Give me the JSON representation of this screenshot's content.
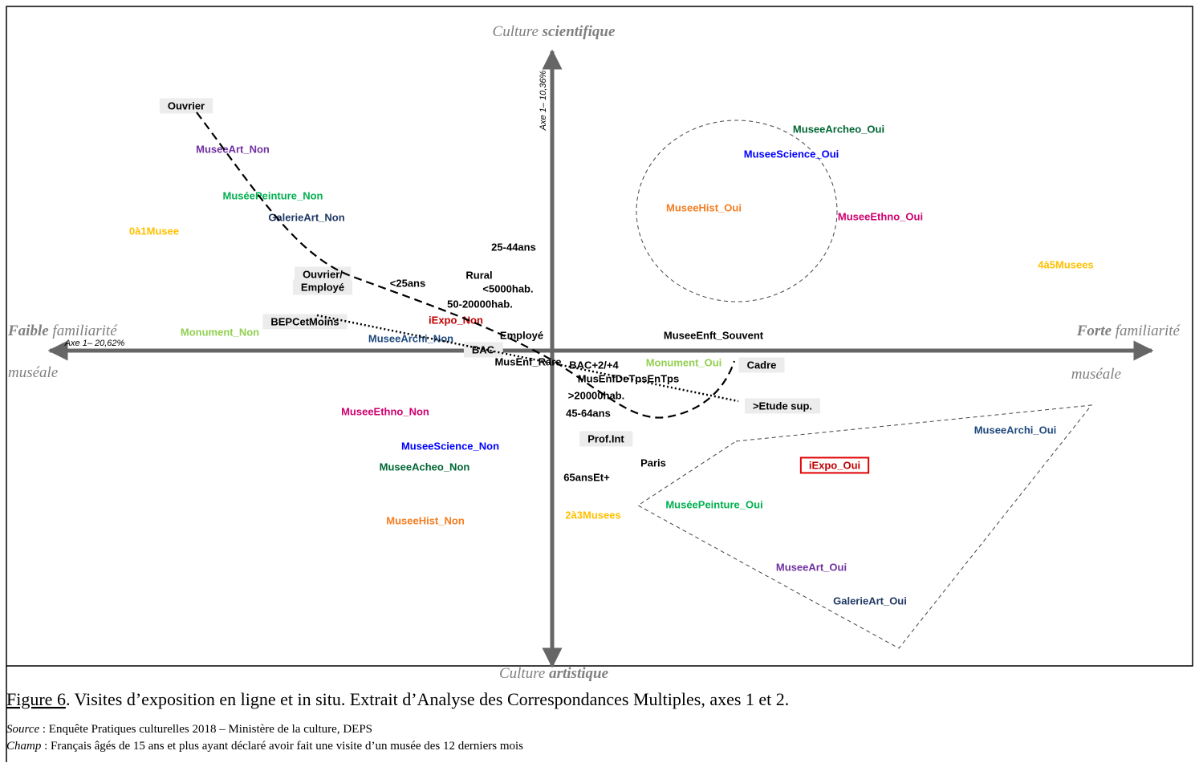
{
  "axes": {
    "top": {
      "plain": "Culture ",
      "bold": "scientifique"
    },
    "bottom": {
      "plain": "Culture ",
      "bold": "artistique"
    },
    "left": {
      "bold": "Faible",
      "plain": " familiarité",
      "second": "muséale"
    },
    "right": {
      "bold": "Forte",
      "plain": " familiarité",
      "second": "muséale"
    },
    "x_axis_label": "Axe 1– 20,62%",
    "y_axis_label": "Axe 1– 10,36%"
  },
  "labels": [
    {
      "text": "Ouvrier",
      "color": "#000000",
      "box": true
    },
    {
      "text": "MuseeArt_Non",
      "color": "#7030a0"
    },
    {
      "text": "MuséePeinture_Non",
      "color": "#00b050"
    },
    {
      "text": "GalerieArt_Non",
      "color": "#1f3864"
    },
    {
      "text": "0à1Musee",
      "color": "#ffc000"
    },
    {
      "text": "25-44ans",
      "color": "#000000"
    },
    {
      "text": "Ouvrier/",
      "color": "#000000",
      "box": true
    },
    {
      "text": "Employé",
      "color": "#000000",
      "box": true
    },
    {
      "text": "<25ans",
      "color": "#000000"
    },
    {
      "text": "Rural",
      "color": "#000000"
    },
    {
      "text": "<5000hab.",
      "color": "#000000"
    },
    {
      "text": "50-20000hab.",
      "color": "#000000"
    },
    {
      "text": "BEPCetMoins",
      "color": "#000000",
      "box": true
    },
    {
      "text": "iExpo_Non",
      "color": "#c00000"
    },
    {
      "text": "Employé",
      "color": "#000000"
    },
    {
      "text": "MuseeArchi_Non",
      "color": "#1f497d"
    },
    {
      "text": "Monument_Non",
      "color": "#92d050"
    },
    {
      "text": "BAC",
      "color": "#000000",
      "box": true
    },
    {
      "text": "MusEnf_Rare",
      "color": "#000000"
    },
    {
      "text": "BAC+2/+4",
      "color": "#000000"
    },
    {
      "text": "MusEnfDeTpsEnTps",
      "color": "#000000"
    },
    {
      "text": ">20000hab.",
      "color": "#000000"
    },
    {
      "text": "45-64ans",
      "color": "#000000"
    },
    {
      "text": "MuseeEnft_Souvent",
      "color": "#000000"
    },
    {
      "text": "Monument_Oui",
      "color": "#92d050"
    },
    {
      "text": "Cadre",
      "color": "#000000",
      "box": true
    },
    {
      "text": ">Etude sup.",
      "color": "#000000",
      "box": true
    },
    {
      "text": "MuseeEthno_Non",
      "color": "#d0006f"
    },
    {
      "text": "MuseeScience_Non",
      "color": "#0000ff"
    },
    {
      "text": "MuseeAcheo_Non",
      "color": "#006633"
    },
    {
      "text": "MuseeHist_Non",
      "color": "#f57c1f"
    },
    {
      "text": "Prof.Int",
      "color": "#000000",
      "box": true
    },
    {
      "text": "Paris",
      "color": "#000000"
    },
    {
      "text": "65ansEt+",
      "color": "#000000"
    },
    {
      "text": "2à3Musees",
      "color": "#ffc000"
    },
    {
      "text": "MuseeArcheo_Oui",
      "color": "#006633"
    },
    {
      "text": "MuseeScience_Oui",
      "color": "#0000ff"
    },
    {
      "text": "MuseeHist_Oui",
      "color": "#f57c1f"
    },
    {
      "text": "MuseeEthno_Oui",
      "color": "#d0006f"
    },
    {
      "text": "4à5Musees",
      "color": "#ffc000"
    },
    {
      "text": "MuseeArchi_Oui",
      "color": "#1f497d"
    },
    {
      "text": "iExpo_Oui",
      "color": "#c00000",
      "redbox": true
    },
    {
      "text": "MuséePeinture_Oui",
      "color": "#00b050"
    },
    {
      "text": "MuseeArt_Oui",
      "color": "#7030a0"
    },
    {
      "text": "GalerieArt_Oui",
      "color": "#1f3864"
    }
  ],
  "caption": {
    "figure": "Figure 6",
    "text": ". Visites d’exposition en ligne et in situ. Extrait d’Analyse des Correspondances Multiples, axes 1 et 2.",
    "source_label": "Source",
    "source_text": " : Enquête Pratiques culturelles 2018 – Ministère de la culture, DEPS",
    "champ_label": "Champ",
    "champ_text": " : Français âgés de 15 ans et plus ayant déclaré avoir fait une visite d’un musée des 12 derniers mois"
  }
}
